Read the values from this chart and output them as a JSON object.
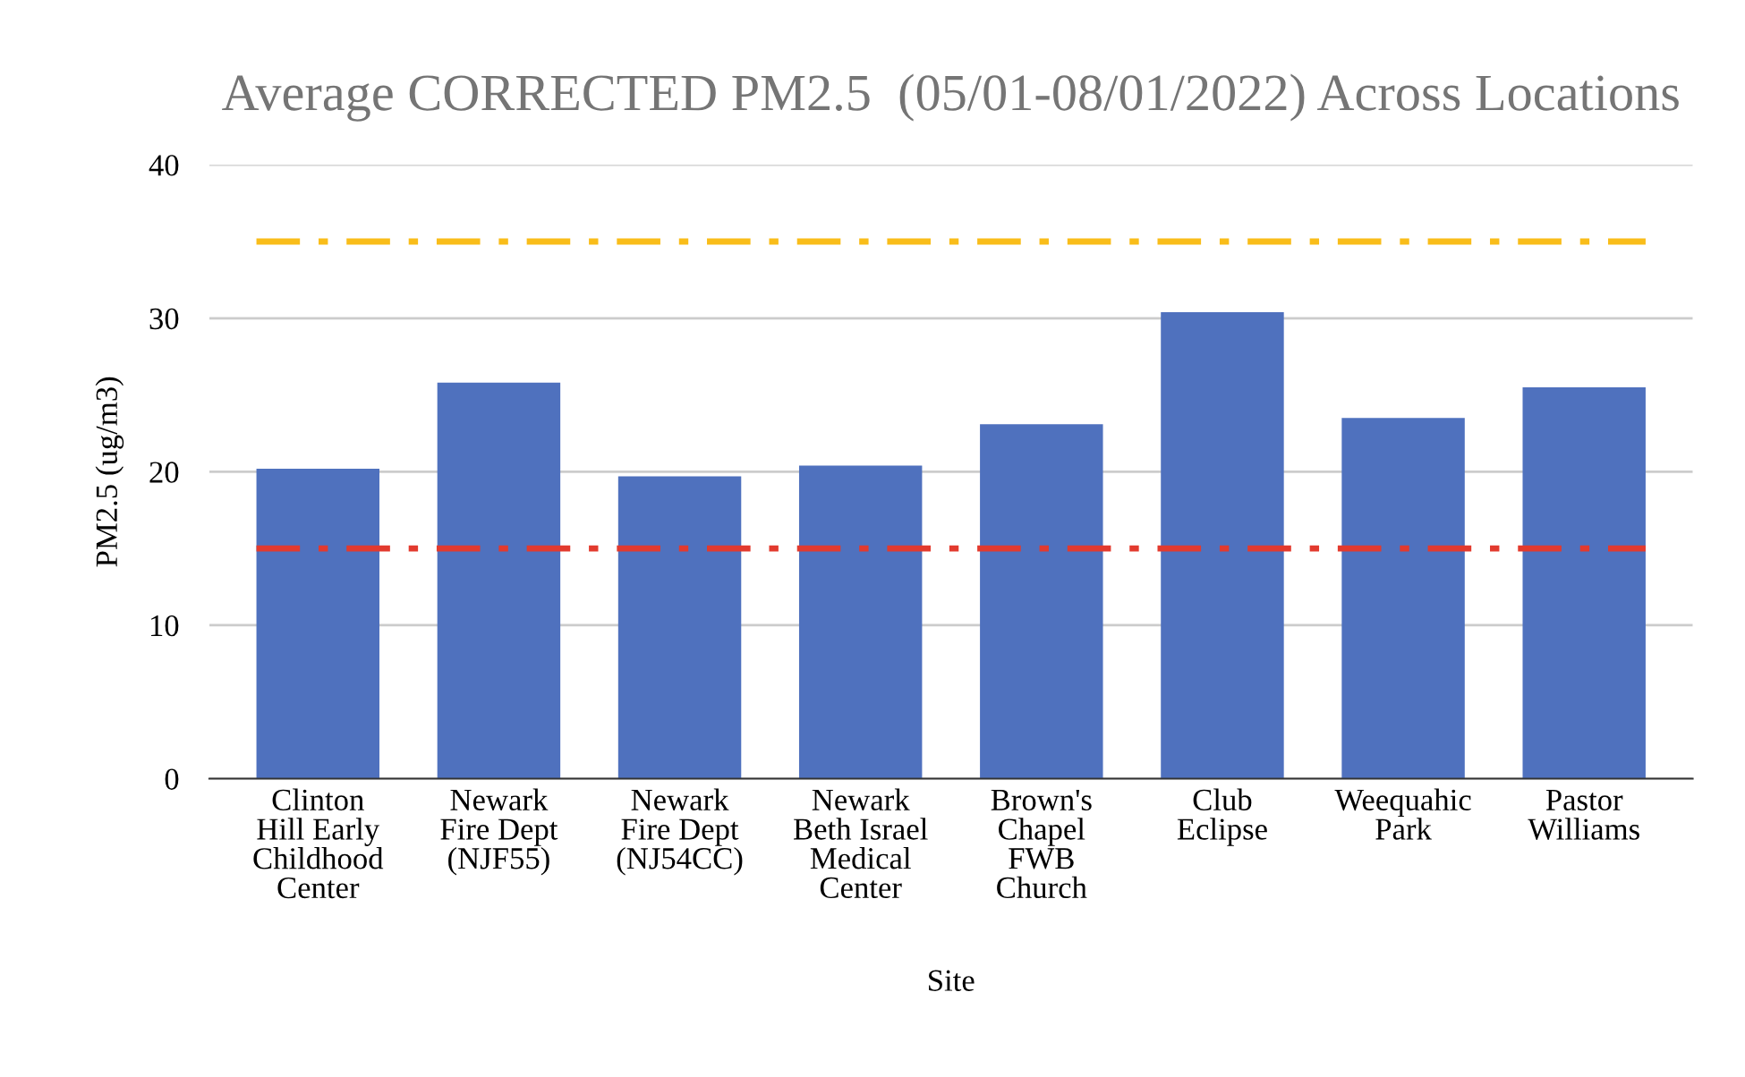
{
  "chart_data": {
    "type": "bar",
    "title": "Average CORRECTED PM2.5  (05/01-08/01/2022) Across Locations",
    "xlabel": "Site",
    "ylabel": "PM2.5 (ug/m3)",
    "categories": [
      "Clinton\nHill Early\nChildhood\nCenter",
      "Newark\nFire Dept\n(NJF55)",
      "Newark\nFire Dept\n(NJ54CC)",
      "Newark\nBeth Israel\nMedical\nCenter",
      "Brown's\nChapel\nFWB\nChurch",
      "Club\nEclipse",
      "Weequahic\nPark",
      "Pastor\nWilliams"
    ],
    "values": [
      20.2,
      25.8,
      19.7,
      20.4,
      23.1,
      30.4,
      23.5,
      25.5
    ],
    "color": "#4f71be",
    "ylim": [
      0,
      40
    ],
    "yticks": [
      0,
      10,
      20,
      30,
      40
    ],
    "grid": "y",
    "ref_lines": [
      {
        "axis": "y",
        "value": 35,
        "color": "#f9bd1a",
        "line_style": "dashdot"
      },
      {
        "axis": "y",
        "value": 15,
        "color": "#e23a2e",
        "line_style": "dashdot"
      }
    ]
  }
}
